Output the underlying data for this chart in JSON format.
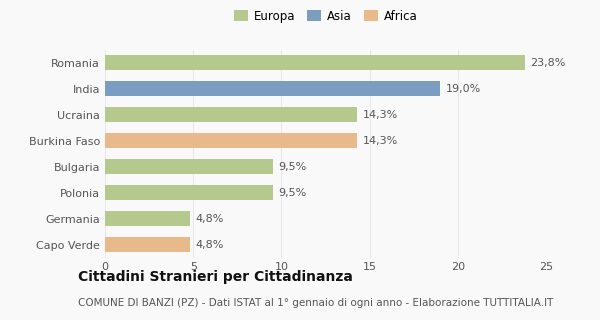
{
  "categories": [
    "Romania",
    "India",
    "Ucraina",
    "Burkina Faso",
    "Bulgaria",
    "Polonia",
    "Germania",
    "Capo Verde"
  ],
  "values": [
    23.8,
    19.0,
    14.3,
    14.3,
    9.5,
    9.5,
    4.8,
    4.8
  ],
  "labels": [
    "23,8%",
    "19,0%",
    "14,3%",
    "14,3%",
    "9,5%",
    "9,5%",
    "4,8%",
    "4,8%"
  ],
  "colors": [
    "#b5c98e",
    "#7b9dc0",
    "#b5c98e",
    "#e8b98a",
    "#b5c98e",
    "#b5c98e",
    "#b5c98e",
    "#e8b98a"
  ],
  "legend_labels": [
    "Europa",
    "Asia",
    "Africa"
  ],
  "legend_colors": [
    "#b5c98e",
    "#7b9dc0",
    "#e8b98a"
  ],
  "xlim": [
    0,
    25
  ],
  "xticks": [
    0,
    5,
    10,
    15,
    20,
    25
  ],
  "title": "Cittadini Stranieri per Cittadinanza",
  "subtitle": "COMUNE DI BANZI (PZ) - Dati ISTAT al 1° gennaio di ogni anno - Elaborazione TUTTITALIA.IT",
  "bg_color": "#f9f9f9",
  "grid_color": "#e8e8e8",
  "bar_height": 0.55,
  "title_fontsize": 10,
  "subtitle_fontsize": 7.5,
  "label_fontsize": 8,
  "tick_fontsize": 8,
  "legend_fontsize": 8.5
}
